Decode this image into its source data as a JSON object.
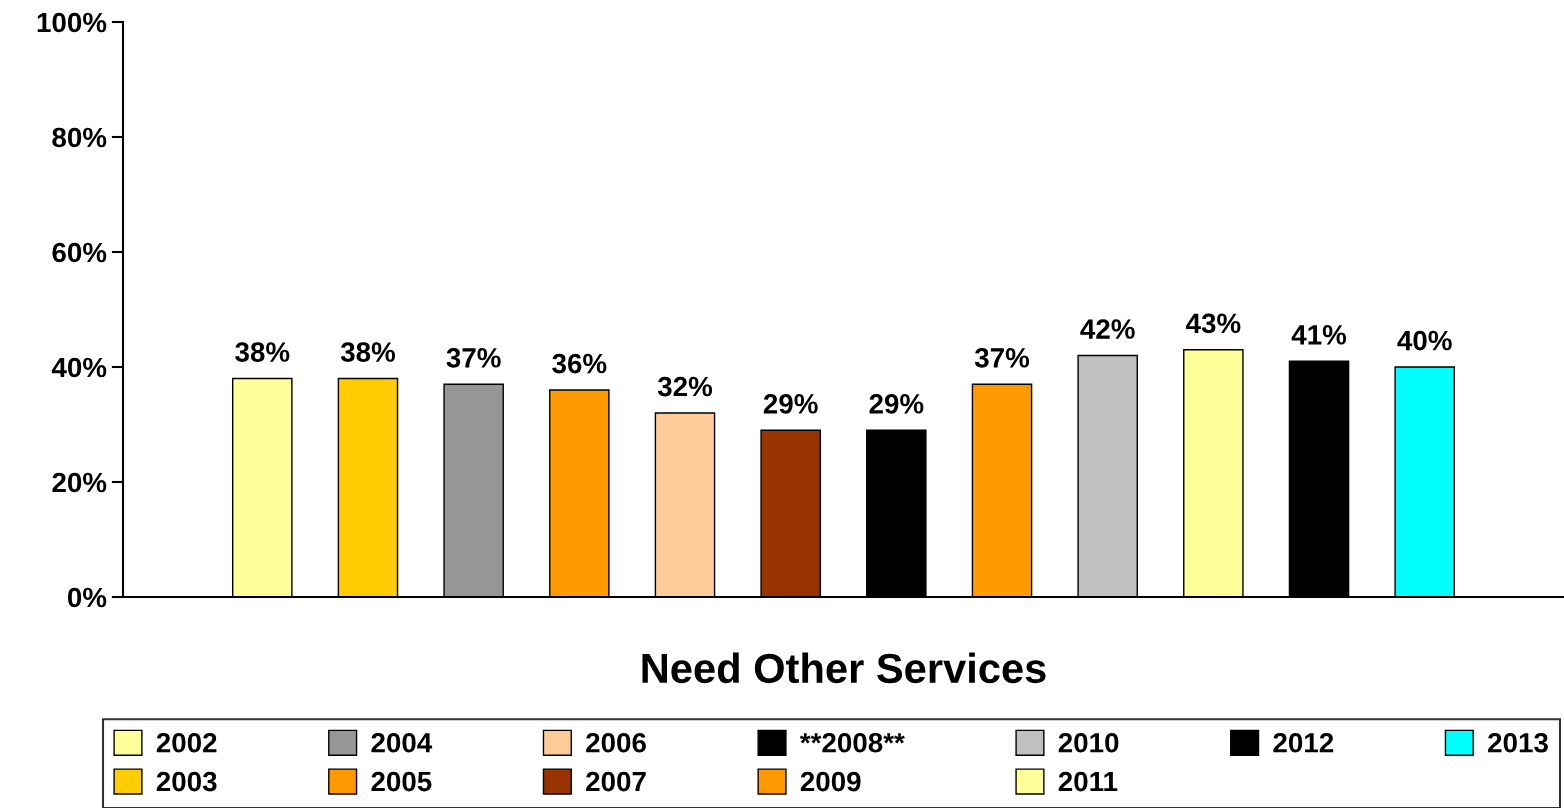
{
  "chart_data": {
    "type": "bar",
    "categories": [
      "Need Other Services"
    ],
    "series": [
      {
        "name": "2002",
        "color": "#ffff99",
        "values": [
          38
        ],
        "value_labels": [
          "38%"
        ]
      },
      {
        "name": "2003",
        "color": "#ffcc00",
        "values": [
          38
        ],
        "value_labels": [
          "38%"
        ]
      },
      {
        "name": "2004",
        "color": "#969696",
        "values": [
          37
        ],
        "value_labels": [
          "37%"
        ]
      },
      {
        "name": "2005",
        "color": "#ff9900",
        "values": [
          36
        ],
        "value_labels": [
          "36%"
        ]
      },
      {
        "name": "2006",
        "color": "#ffcc99",
        "values": [
          32
        ],
        "value_labels": [
          "32%"
        ]
      },
      {
        "name": "2007",
        "color": "#993300",
        "values": [
          29
        ],
        "value_labels": [
          "29%"
        ]
      },
      {
        "name": "**2008**",
        "color": "#000000",
        "values": [
          29
        ],
        "value_labels": [
          "29%"
        ]
      },
      {
        "name": "2009",
        "color": "#ff9900",
        "values": [
          37
        ],
        "value_labels": [
          "37%"
        ]
      },
      {
        "name": "2010",
        "color": "#c0c0c0",
        "values": [
          42
        ],
        "value_labels": [
          "42%"
        ]
      },
      {
        "name": "2011",
        "color": "#ffff99",
        "values": [
          43
        ],
        "value_labels": [
          "43%"
        ]
      },
      {
        "name": "2012",
        "color": "#000000",
        "values": [
          41
        ],
        "value_labels": [
          "41%"
        ]
      },
      {
        "name": "2013",
        "color": "#00ffff",
        "values": [
          40
        ],
        "value_labels": [
          "40%"
        ]
      }
    ],
    "ylim": [
      0,
      100
    ],
    "yticks": [
      {
        "value": 0,
        "label": "0%"
      },
      {
        "value": 20,
        "label": "20%"
      },
      {
        "value": 40,
        "label": "40%"
      },
      {
        "value": 60,
        "label": "60%"
      },
      {
        "value": 80,
        "label": "80%"
      },
      {
        "value": 100,
        "label": "100%"
      }
    ],
    "grid": false,
    "legend": "bottom"
  }
}
